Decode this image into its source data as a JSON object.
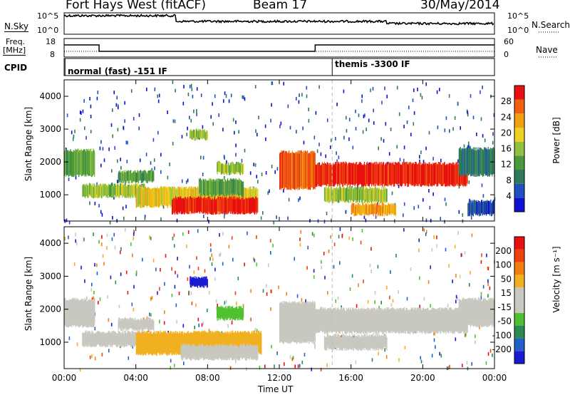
{
  "header": {
    "title": "Fort Hays West (fitACF)",
    "beam": "Beam 17",
    "date": "30/May/2014"
  },
  "top_panels": {
    "nsky_label": "N.Sky",
    "nsky_ticks": [
      "10^5",
      "10^0"
    ],
    "nsearch_label": "N.Search",
    "nsearch_ticks": [
      "10^5",
      "10^0"
    ],
    "freq_label_1": "Freq.",
    "freq_label_2": "[MHz]",
    "freq_ticks": [
      "18",
      "8"
    ],
    "nave_label": "Nave",
    "nave_ticks": [
      "60",
      "0"
    ],
    "cpid_label": "CPID",
    "cpid_modes": [
      {
        "label": "normal (fast) -151 IF",
        "start": "00:00"
      },
      {
        "label": "themis -3300 IF",
        "start": "14:55"
      }
    ]
  },
  "colors": {
    "power": [
      "#1010d0",
      "#2050c0",
      "#2f7a5a",
      "#4a9a3a",
      "#90c040",
      "#f0d020",
      "#f0a010",
      "#f06010",
      "#e81010"
    ],
    "velocity": [
      "#1a1ad0",
      "#2060c8",
      "#2a8a50",
      "#50c030",
      "#c8c8c0",
      "#c8c8c0",
      "#f0b020",
      "#f08010",
      "#f04010",
      "#e81010"
    ],
    "gray_cell": "#c8c8c0"
  },
  "chart_data": [
    {
      "type": "heatmap",
      "name": "power",
      "ylabel": "Slant Range [km]",
      "yticks": [
        "4000",
        "3000",
        "2000",
        "1000"
      ],
      "ytick_values": [
        4000,
        3000,
        2000,
        1000
      ],
      "ylim": [
        200,
        4500
      ],
      "xlim_hours": [
        0,
        24
      ],
      "colorbar_label": "Power [dB]",
      "colorbar_ticks": [
        "28",
        "24",
        "20",
        "16",
        "12",
        "8",
        "4"
      ],
      "bands": [
        {
          "t0": 0.0,
          "t1": 1.7,
          "r0": 1600,
          "r1": 2350,
          "level": 3
        },
        {
          "t0": 1.0,
          "t1": 4.5,
          "r0": 950,
          "r1": 1300,
          "level": 4
        },
        {
          "t0": 3.0,
          "t1": 5.0,
          "r0": 1400,
          "r1": 1700,
          "level": 3
        },
        {
          "t0": 4.0,
          "t1": 10.8,
          "r0": 650,
          "r1": 1200,
          "level": 5
        },
        {
          "t0": 6.0,
          "t1": 10.8,
          "r0": 450,
          "r1": 900,
          "level": 8
        },
        {
          "t0": 7.5,
          "t1": 10.0,
          "r0": 1000,
          "r1": 1450,
          "level": 3
        },
        {
          "t0": 8.5,
          "t1": 10.0,
          "r0": 1650,
          "r1": 1950,
          "level": 4
        },
        {
          "t0": 7.0,
          "t1": 8.0,
          "r0": 2700,
          "r1": 2950,
          "level": 4
        },
        {
          "t0": 12.0,
          "t1": 14.0,
          "r0": 1200,
          "r1": 2300,
          "level": 7
        },
        {
          "t0": 14.0,
          "t1": 22.5,
          "r0": 1300,
          "r1": 1950,
          "level": 8
        },
        {
          "t0": 14.5,
          "t1": 18.0,
          "r0": 800,
          "r1": 1200,
          "level": 4
        },
        {
          "t0": 16.0,
          "t1": 18.5,
          "r0": 400,
          "r1": 700,
          "level": 6
        },
        {
          "t0": 22.0,
          "t1": 24.0,
          "r0": 1600,
          "r1": 2400,
          "level": 2
        },
        {
          "t0": 22.5,
          "t1": 24.0,
          "r0": 400,
          "r1": 800,
          "level": 1
        }
      ]
    },
    {
      "type": "heatmap",
      "name": "velocity",
      "ylabel": "Slant Range [km]",
      "xlabel": "Time UT",
      "xticks": [
        "00:00",
        "04:00",
        "08:00",
        "12:00",
        "16:00",
        "20:00",
        "00:00"
      ],
      "xtick_hours": [
        0,
        4,
        8,
        12,
        16,
        20,
        24
      ],
      "yticks": [
        "4000",
        "3000",
        "2000",
        "1000"
      ],
      "ytick_values": [
        4000,
        3000,
        2000,
        1000
      ],
      "ylim": [
        200,
        4500
      ],
      "xlim_hours": [
        0,
        24
      ],
      "colorbar_label": "Velocity [m s⁻¹]",
      "colorbar_ticks": [
        "200",
        "100",
        "50",
        "15",
        "-15",
        "-50",
        "-100",
        "-200"
      ],
      "bands": [
        {
          "t0": 0.0,
          "t1": 1.7,
          "r0": 1500,
          "r1": 2300,
          "level": 4
        },
        {
          "t0": 1.0,
          "t1": 4.5,
          "r0": 900,
          "r1": 1300,
          "level": 4
        },
        {
          "t0": 3.0,
          "t1": 5.0,
          "r0": 1400,
          "r1": 1700,
          "level": 4
        },
        {
          "t0": 4.0,
          "t1": 11.0,
          "r0": 650,
          "r1": 1300,
          "level": 6
        },
        {
          "t0": 6.5,
          "t1": 10.8,
          "r0": 500,
          "r1": 900,
          "level": 5
        },
        {
          "t0": 8.5,
          "t1": 10.0,
          "r0": 1700,
          "r1": 2050,
          "level": 3
        },
        {
          "t0": 7.0,
          "t1": 8.0,
          "r0": 2700,
          "r1": 2950,
          "level": 0
        },
        {
          "t0": 12.0,
          "t1": 14.0,
          "r0": 1000,
          "r1": 2200,
          "level": 4
        },
        {
          "t0": 14.0,
          "t1": 22.5,
          "r0": 1300,
          "r1": 2000,
          "level": 4
        },
        {
          "t0": 14.5,
          "t1": 18.0,
          "r0": 800,
          "r1": 1200,
          "level": 4
        },
        {
          "t0": 22.0,
          "t1": 24.0,
          "r0": 1500,
          "r1": 2300,
          "level": 4
        }
      ]
    }
  ]
}
